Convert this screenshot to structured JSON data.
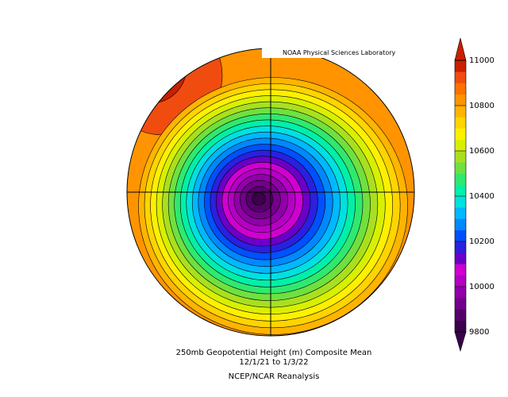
{
  "credit": "NOAA Physical Sciences Laboratory",
  "caption": {
    "title": "250mb Geopotential Height (m) Composite Mean",
    "dates": "12/1/21  to 1/3/22",
    "source": "NCEP/NCAR Reanalysis"
  },
  "colorbar": {
    "lim": [
      9800,
      11000
    ],
    "ticks": [
      9800,
      10000,
      10200,
      10400,
      10600,
      10800,
      11000
    ],
    "colors": [
      "#3a004a",
      "#55006a",
      "#72008a",
      "#9000a8",
      "#b400c4",
      "#d000d0",
      "#6a00c8",
      "#2a20e0",
      "#0050ff",
      "#0088ff",
      "#00b8ff",
      "#00e0e0",
      "#00f0a8",
      "#30e870",
      "#70e040",
      "#a8e020",
      "#d8f000",
      "#fff000",
      "#ffd400",
      "#ffb400",
      "#ff9400",
      "#ff7000",
      "#f04c10",
      "#c82000"
    ]
  }
}
